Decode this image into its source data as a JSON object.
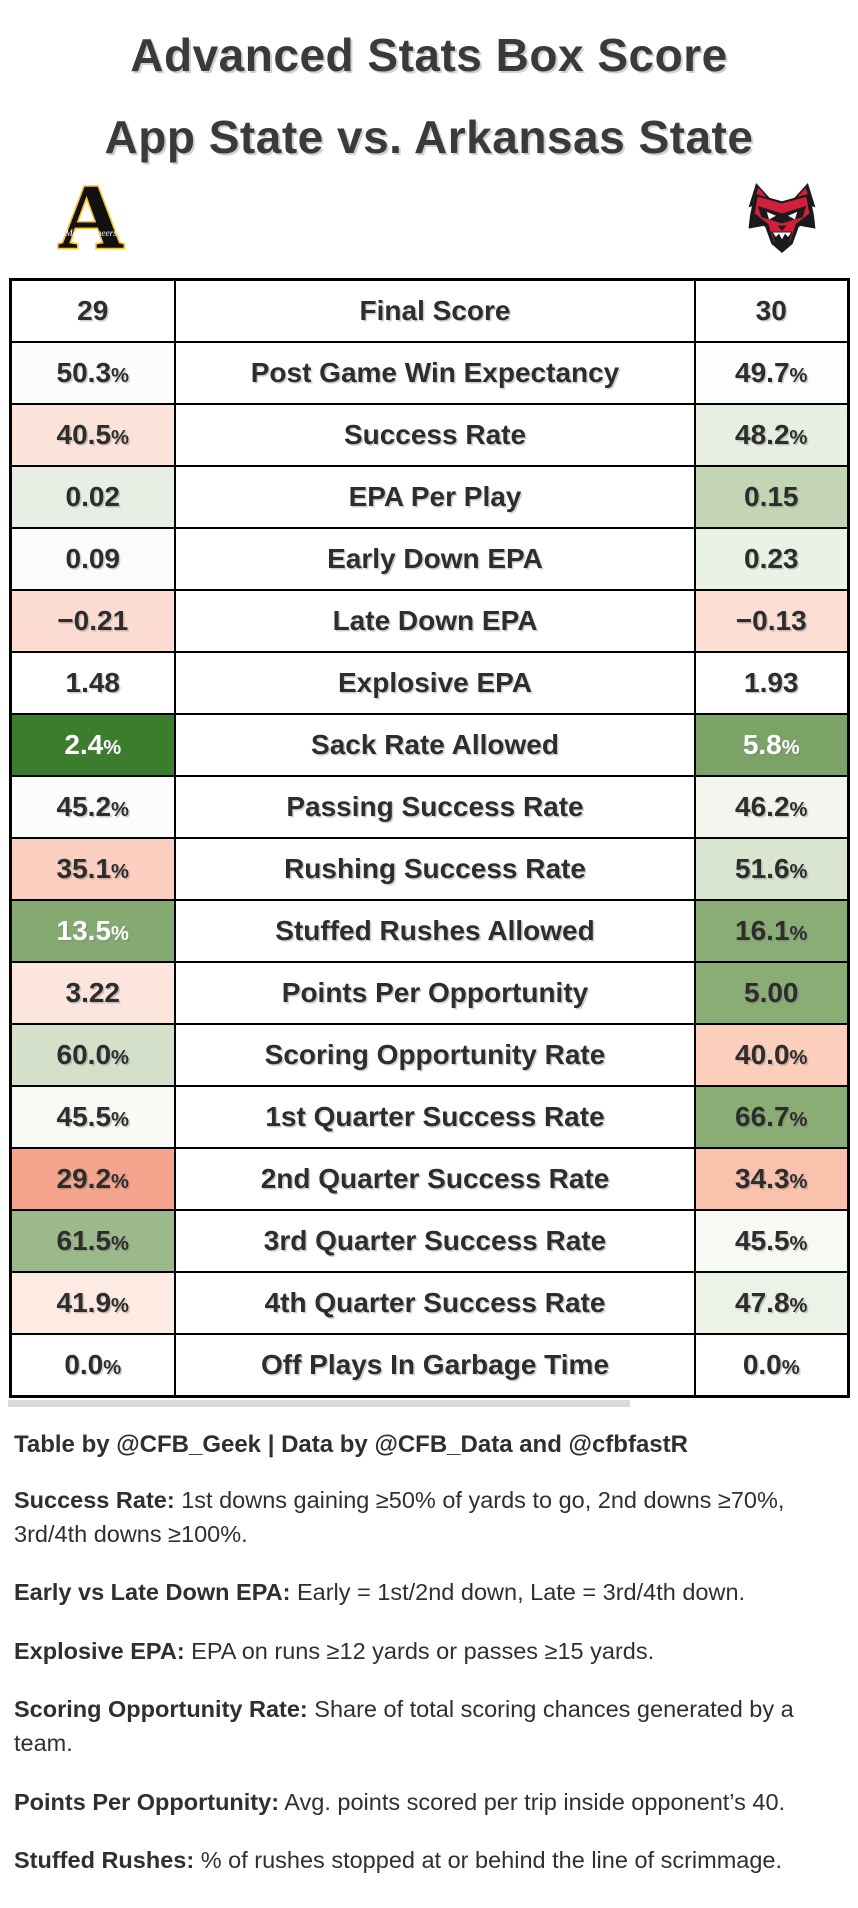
{
  "title": {
    "line1": "Advanced Stats Box Score",
    "line2": "App State vs. Arkansas State"
  },
  "teams": {
    "home": {
      "name": "App State"
    },
    "away": {
      "name": "Arkansas State"
    }
  },
  "colors": {
    "strong_green": "#3c7d2d",
    "mid_green": "#8aad76",
    "light_green": "#dae5d1",
    "strong_salmon": "#f5a58e",
    "light_pink": "#fce3da",
    "border_black": "#000000",
    "text_dark": "#2d2d2d",
    "appstate_gold": "#ffc425",
    "redwolves_red": "#d2203b"
  },
  "chart_data": {
    "type": "table",
    "title": "Advanced Stats Box Score — App State vs. Arkansas State",
    "categories": [
      "Final Score",
      "Post Game Win Expectancy",
      "Success Rate",
      "EPA Per Play",
      "Early Down EPA",
      "Late Down EPA",
      "Explosive EPA",
      "Sack Rate Allowed",
      "Passing Success Rate",
      "Rushing Success Rate",
      "Stuffed Rushes Allowed",
      "Points Per Opportunity",
      "Scoring Opportunity Rate",
      "1st Quarter Success Rate",
      "2nd Quarter Success Rate",
      "3rd Quarter Success Rate",
      "4th Quarter Success Rate",
      "Off Plays In Garbage Time"
    ],
    "series": [
      {
        "name": "App State",
        "values": [
          "29",
          "50.3%",
          "40.5%",
          "0.02",
          "0.09",
          "−0.21",
          "1.48",
          "2.4%",
          "45.2%",
          "35.1%",
          "13.5%",
          "3.22",
          "60.0%",
          "45.5%",
          "29.2%",
          "61.5%",
          "41.9%",
          "0.0%"
        ]
      },
      {
        "name": "Arkansas State",
        "values": [
          "30",
          "49.7%",
          "48.2%",
          "0.15",
          "0.23",
          "−0.13",
          "1.93",
          "5.8%",
          "46.2%",
          "51.6%",
          "16.1%",
          "5.00",
          "40.0%",
          "66.7%",
          "34.3%",
          "45.5%",
          "47.8%",
          "0.0%"
        ]
      }
    ]
  },
  "table": {
    "rows": [
      {
        "metric": "Final Score",
        "left": "29",
        "left_bg": "#ffffff",
        "left_fg": "#2d2d2d",
        "right": "30",
        "right_bg": "#ffffff",
        "right_fg": "#2d2d2d"
      },
      {
        "metric": "Post Game Win Expectancy",
        "left": "50.3%",
        "left_bg": "#fcfdfa",
        "left_fg": "#2d2d2d",
        "right": "49.7%",
        "right_bg": "#fdfefb",
        "right_fg": "#2d2d2d"
      },
      {
        "metric": "Success Rate",
        "left": "40.5%",
        "left_bg": "#fce3da",
        "left_fg": "#2d2d2d",
        "right": "48.2%",
        "right_bg": "#e8efe2",
        "right_fg": "#2d2d2d"
      },
      {
        "metric": "EPA Per Play",
        "left": "0.02",
        "left_bg": "#e8eee3",
        "left_fg": "#2d2d2d",
        "right": "0.15",
        "right_bg": "#c3d5b5",
        "right_fg": "#2d2d2d"
      },
      {
        "metric": "Early Down EPA",
        "left": "0.09",
        "left_bg": "#fbfcf9",
        "left_fg": "#2d2d2d",
        "right": "0.23",
        "right_bg": "#eaf1e5",
        "right_fg": "#2d2d2d"
      },
      {
        "metric": "Late Down EPA",
        "left": "−0.21",
        "left_bg": "#fcdcd2",
        "left_fg": "#2d2d2d",
        "right": "−0.13",
        "right_bg": "#fcded5",
        "right_fg": "#2d2d2d"
      },
      {
        "metric": "Explosive EPA",
        "left": "1.48",
        "left_bg": "#ffffff",
        "left_fg": "#2d2d2d",
        "right": "1.93",
        "right_bg": "#ffffff",
        "right_fg": "#2d2d2d"
      },
      {
        "metric": "Sack Rate Allowed",
        "left": "2.4%",
        "left_bg": "#3c7d2d",
        "left_fg": "#ffffff",
        "right": "5.8%",
        "right_bg": "#7ba368",
        "right_fg": "#ffffff"
      },
      {
        "metric": "Passing Success Rate",
        "left": "45.2%",
        "left_bg": "#fcfdfb",
        "left_fg": "#2d2d2d",
        "right": "46.2%",
        "right_bg": "#f2f6ee",
        "right_fg": "#2d2d2d"
      },
      {
        "metric": "Rushing Success Rate",
        "left": "35.1%",
        "left_bg": "#fbcfc0",
        "left_fg": "#2d2d2d",
        "right": "51.6%",
        "right_bg": "#dae5d1",
        "right_fg": "#2d2d2d"
      },
      {
        "metric": "Stuffed Rushes Allowed",
        "left": "13.5%",
        "left_bg": "#84a971",
        "left_fg": "#ffffff",
        "right": "16.1%",
        "right_bg": "#8aad76",
        "right_fg": "#2d2d2d"
      },
      {
        "metric": "Points Per Opportunity",
        "left": "3.22",
        "left_bg": "#fce5dc",
        "left_fg": "#2d2d2d",
        "right": "5.00",
        "right_bg": "#8aad76",
        "right_fg": "#2d2d2d"
      },
      {
        "metric": "Scoring Opportunity Rate",
        "left": "60.0%",
        "left_bg": "#d4e0ca",
        "left_fg": "#2d2d2d",
        "right": "40.0%",
        "right_bg": "#fbcfbc",
        "right_fg": "#2d2d2d"
      },
      {
        "metric": "1st Quarter Success Rate",
        "left": "45.5%",
        "left_bg": "#f8faf5",
        "left_fg": "#2d2d2d",
        "right": "66.7%",
        "right_bg": "#8aad76",
        "right_fg": "#2d2d2d"
      },
      {
        "metric": "2nd Quarter Success Rate",
        "left": "29.2%",
        "left_bg": "#f5a58e",
        "left_fg": "#2d2d2d",
        "right": "34.3%",
        "right_bg": "#f9c2ad",
        "right_fg": "#2d2d2d"
      },
      {
        "metric": "3rd Quarter Success Rate",
        "left": "61.5%",
        "left_bg": "#9cb98b",
        "left_fg": "#2d2d2d",
        "right": "45.5%",
        "right_bg": "#f7f9f4",
        "right_fg": "#2d2d2d"
      },
      {
        "metric": "4th Quarter Success Rate",
        "left": "41.9%",
        "left_bg": "#fdeae3",
        "left_fg": "#2d2d2d",
        "right": "47.8%",
        "right_bg": "#ecf2e7",
        "right_fg": "#2d2d2d"
      },
      {
        "metric": "Off Plays In Garbage Time",
        "left": "0.0%",
        "left_bg": "#ffffff",
        "left_fg": "#2d2d2d",
        "right": "0.0%",
        "right_bg": "#ffffff",
        "right_fg": "#2d2d2d"
      }
    ]
  },
  "source_note": "Table by @CFB_Geek | Data by @CFB_Data and @cfbfastR",
  "footnotes": [
    {
      "term": "Success Rate:",
      "text": " 1st downs gaining ≥50% of yards to go, 2nd downs ≥70%, 3rd/4th downs ≥100%."
    },
    {
      "term": "Early vs Late Down EPA:",
      "text": " Early = 1st/2nd down, Late = 3rd/4th down."
    },
    {
      "term": "Explosive EPA:",
      "text": " EPA on runs ≥12 yards or passes ≥15 yards."
    },
    {
      "term": "Scoring Opportunity Rate:",
      "text": " Share of total scoring chances generated by a team."
    },
    {
      "term": "Points Per Opportunity:",
      "text": " Avg. points scored per trip inside opponent’s 40."
    },
    {
      "term": "Stuffed Rushes:",
      "text": " % of rushes stopped at or behind the line of scrimmage."
    }
  ]
}
